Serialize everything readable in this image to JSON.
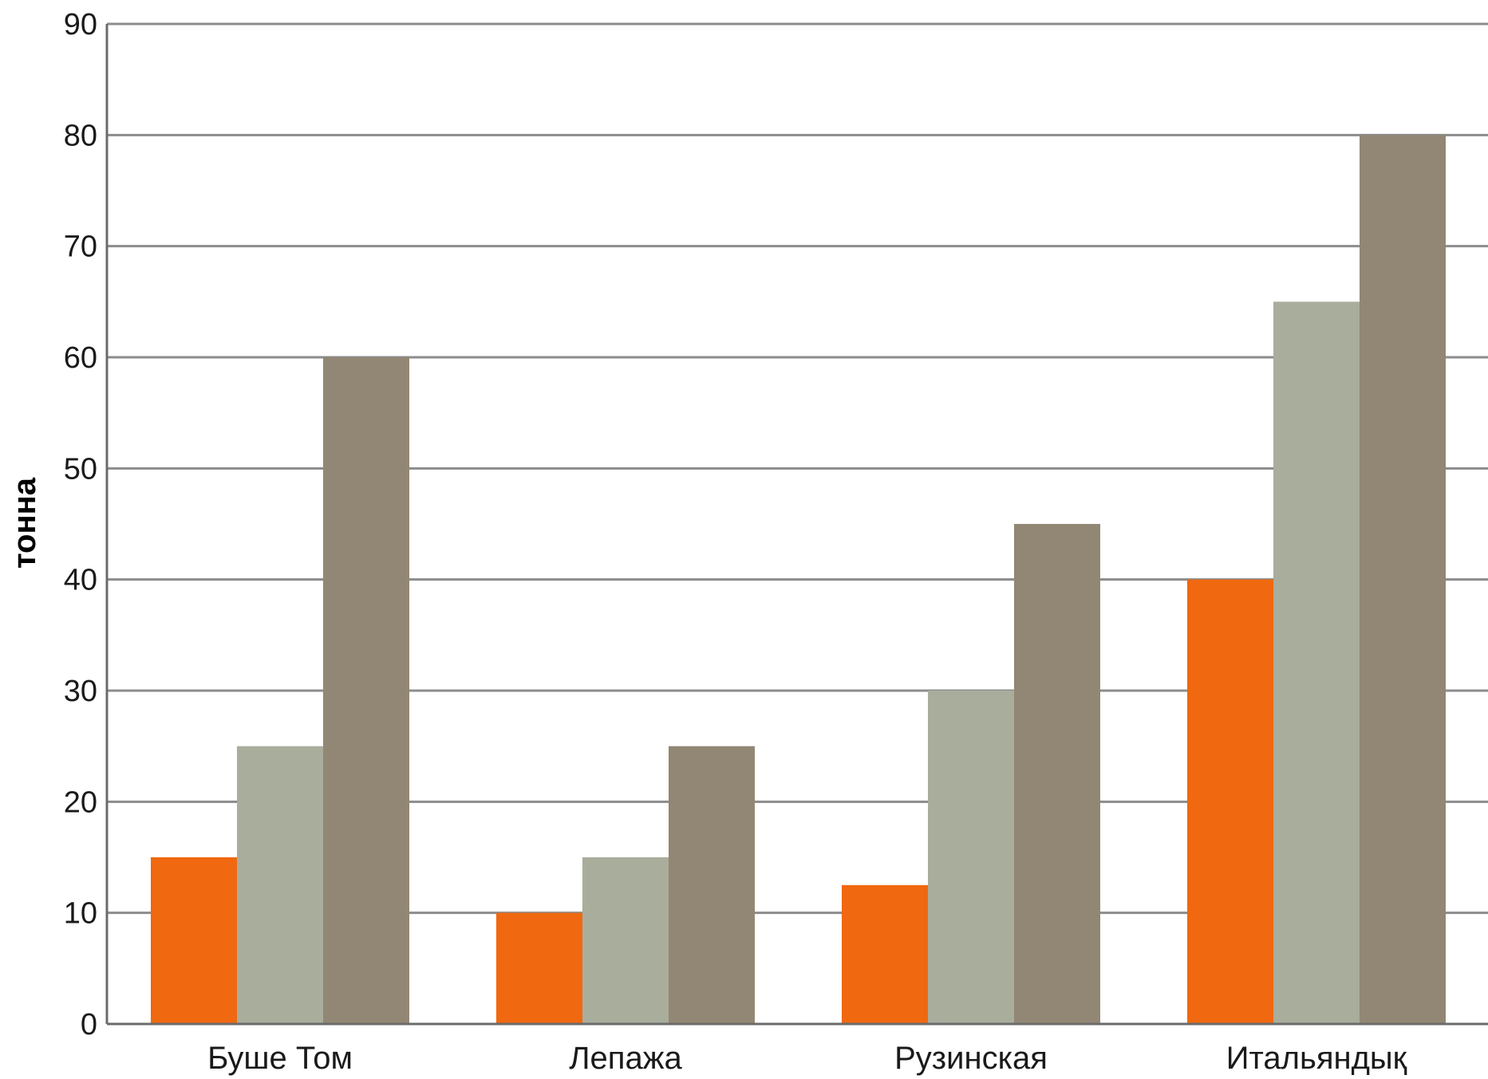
{
  "chart_data": {
    "type": "bar",
    "title": "",
    "xlabel": "",
    "ylabel": "тонна",
    "ylim": [
      0,
      90
    ],
    "yticks": [
      0,
      10,
      20,
      30,
      40,
      50,
      60,
      70,
      80,
      90
    ],
    "categories": [
      "Буше Том",
      "Лепажа",
      "Рузинская",
      "Итальяндық"
    ],
    "series": [
      {
        "values": [
          15,
          10,
          12.5,
          40
        ],
        "color": "#f0680f"
      },
      {
        "values": [
          25,
          15,
          30,
          65
        ],
        "color": "#a9ad9c"
      },
      {
        "values": [
          60,
          25,
          45,
          80
        ],
        "color": "#928774"
      }
    ],
    "grid": true,
    "legend": "none"
  }
}
